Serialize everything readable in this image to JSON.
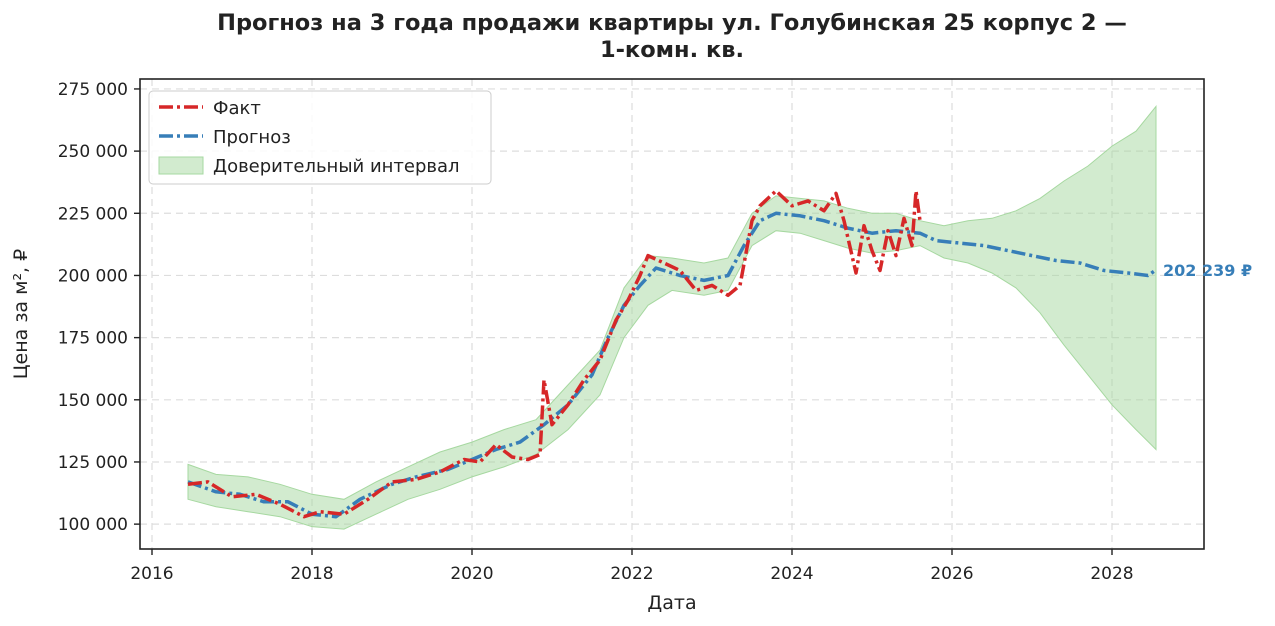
{
  "chart_data": {
    "type": "line",
    "title_line1": "Прогноз на 3 года продажи квартиры  ул. Голубинская 25 корпус 2 —",
    "title_line2": "1-комн. кв.",
    "xlabel": "Дата",
    "ylabel": "Цена за м², ₽",
    "xlim": [
      2015.85,
      2029.15
    ],
    "ylim": [
      90000,
      279000
    ],
    "x_ticks": [
      2016,
      2018,
      2020,
      2022,
      2024,
      2026,
      2028
    ],
    "x_tick_labels": [
      "2016",
      "2018",
      "2020",
      "2022",
      "2024",
      "2026",
      "2028"
    ],
    "y_ticks": [
      100000,
      125000,
      150000,
      175000,
      200000,
      225000,
      250000,
      275000
    ],
    "y_tick_labels": [
      "100 000",
      "125 000",
      "150 000",
      "175 000",
      "200 000",
      "225 000",
      "250 000",
      "275 000"
    ],
    "grid": true,
    "legend_position": "top-left",
    "series": [
      {
        "name": "Факт",
        "color": "#d62728",
        "style": "dashdot",
        "x": [
          2016.45,
          2016.7,
          2017.0,
          2017.3,
          2017.6,
          2017.9,
          2018.1,
          2018.4,
          2018.7,
          2019.0,
          2019.3,
          2019.6,
          2019.9,
          2020.1,
          2020.3,
          2020.5,
          2020.7,
          2020.85,
          2020.9,
          2021.0,
          2021.2,
          2021.4,
          2021.6,
          2021.8,
          2021.95,
          2022.1,
          2022.2,
          2022.4,
          2022.6,
          2022.8,
          2023.0,
          2023.2,
          2023.35,
          2023.5,
          2023.6,
          2023.8,
          2024.0,
          2024.2,
          2024.4,
          2024.55,
          2024.65,
          2024.75,
          2024.8,
          2024.9,
          2025.0,
          2025.1,
          2025.2,
          2025.3,
          2025.4,
          2025.5,
          2025.55,
          2025.6
        ],
        "y": [
          116000,
          117000,
          111000,
          112000,
          108000,
          103000,
          105000,
          104000,
          110000,
          117000,
          118000,
          121000,
          126000,
          125000,
          132000,
          127000,
          126000,
          128000,
          158000,
          140000,
          148000,
          158000,
          166000,
          182000,
          190000,
          200000,
          208000,
          205000,
          202000,
          194000,
          196000,
          192000,
          196000,
          222000,
          228000,
          234000,
          228000,
          230000,
          226000,
          233000,
          222000,
          208000,
          201000,
          220000,
          210000,
          202000,
          218000,
          208000,
          223000,
          212000,
          234000,
          222000
        ]
      },
      {
        "name": "Прогноз",
        "color": "#377eb8",
        "style": "dashdot",
        "x": [
          2016.45,
          2016.8,
          2017.1,
          2017.4,
          2017.7,
          2018.0,
          2018.3,
          2018.6,
          2019.0,
          2019.3,
          2019.7,
          2020.0,
          2020.3,
          2020.6,
          2020.9,
          2021.2,
          2021.5,
          2021.7,
          2021.9,
          2022.1,
          2022.3,
          2022.6,
          2022.9,
          2023.2,
          2023.4,
          2023.6,
          2023.8,
          2024.1,
          2024.4,
          2024.7,
          2025.0,
          2025.3,
          2025.6,
          2025.8,
          2026.1,
          2026.4,
          2026.7,
          2027.0,
          2027.3,
          2027.6,
          2027.9,
          2028.2,
          2028.45,
          2028.55
        ],
        "y": [
          117000,
          113000,
          112000,
          109000,
          109000,
          104000,
          103000,
          110000,
          116000,
          119000,
          122000,
          126000,
          130000,
          133000,
          140000,
          148000,
          160000,
          175000,
          188000,
          196000,
          203000,
          200000,
          198000,
          200000,
          212000,
          222000,
          225000,
          224000,
          222000,
          219000,
          217000,
          218000,
          217000,
          214000,
          213000,
          212000,
          210000,
          208000,
          206000,
          205000,
          202000,
          201000,
          200000,
          202239
        ]
      }
    ],
    "confidence_interval": {
      "name": "Доверительный интервал",
      "color": "#a6d8a0",
      "x": [
        2016.45,
        2016.8,
        2017.2,
        2017.6,
        2018.0,
        2018.4,
        2018.8,
        2019.2,
        2019.6,
        2020.0,
        2020.4,
        2020.8,
        2021.2,
        2021.6,
        2021.9,
        2022.2,
        2022.5,
        2022.9,
        2023.2,
        2023.5,
        2023.8,
        2024.1,
        2024.4,
        2024.7,
        2025.0,
        2025.3,
        2025.6,
        2025.9,
        2026.2,
        2026.5,
        2026.8,
        2027.1,
        2027.4,
        2027.7,
        2028.0,
        2028.3,
        2028.55
      ],
      "lower": [
        110000,
        107000,
        105000,
        103000,
        99000,
        98000,
        104000,
        110000,
        114000,
        119000,
        123000,
        128000,
        138000,
        152000,
        175000,
        188000,
        194000,
        192000,
        194000,
        212000,
        218000,
        217000,
        214000,
        211000,
        209000,
        210000,
        212000,
        207000,
        205000,
        201000,
        195000,
        185000,
        172000,
        160000,
        148000,
        138000,
        130000
      ],
      "upper": [
        124000,
        120000,
        119000,
        116000,
        112000,
        110000,
        117000,
        123000,
        129000,
        133000,
        138000,
        142000,
        156000,
        170000,
        195000,
        208000,
        207000,
        205000,
        207000,
        225000,
        232000,
        231000,
        230000,
        227000,
        225000,
        225000,
        222000,
        220000,
        222000,
        223000,
        226000,
        231000,
        238000,
        244000,
        252000,
        258000,
        268000
      ]
    },
    "end_annotation": {
      "text": "202 239 ₽",
      "x": 2028.55,
      "y": 202239,
      "color": "#377eb8"
    }
  }
}
